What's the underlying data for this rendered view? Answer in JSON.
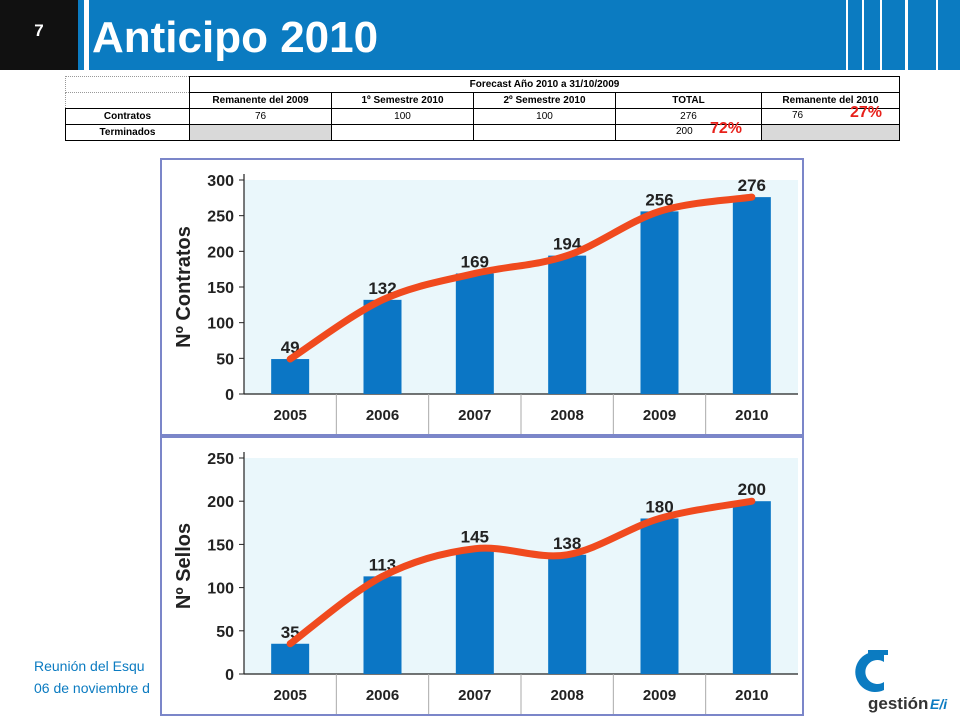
{
  "slide": {
    "number": "7",
    "title": "Anticipo 2010"
  },
  "table": {
    "main_header": "Forecast Año 2010 a 31/10/2009",
    "columns": [
      "Remanente del 2009",
      "1º Semestre 2010",
      "2º Semestre 2010",
      "TOTAL",
      "Remanente del 2010"
    ],
    "rows": [
      {
        "label": "Contratos",
        "cells": [
          "76",
          "100",
          "100",
          "276",
          "76"
        ],
        "badge": "27%"
      },
      {
        "label": "Terminados",
        "cells": [
          "",
          "",
          "",
          "200",
          ""
        ],
        "badge": "72%"
      }
    ]
  },
  "chart_data": [
    {
      "type": "bar",
      "categories": [
        "2005",
        "2006",
        "2007",
        "2008",
        "2009",
        "2010"
      ],
      "values": [
        49,
        132,
        169,
        194,
        256,
        276
      ],
      "ylabel": "Nº Contratos",
      "ylim": [
        0,
        300
      ],
      "yticks": [
        "0",
        "50",
        "100",
        "150",
        "200",
        "250",
        "300"
      ],
      "grid": false,
      "bar_color": "#0b76c5",
      "trend_color": "#f04a1e"
    },
    {
      "type": "bar",
      "categories": [
        "2005",
        "2006",
        "2007",
        "2008",
        "2009",
        "2010"
      ],
      "values": [
        35,
        113,
        145,
        138,
        180,
        200
      ],
      "ylabel": "Nº Sellos",
      "ylim": [
        0,
        250
      ],
      "yticks": [
        "0",
        "50",
        "100",
        "150",
        "200",
        "250"
      ],
      "grid": false,
      "bar_color": "#0b76c5",
      "trend_color": "#f04a1e"
    }
  ],
  "footer": {
    "line1": "Reunión del Esqu",
    "line2": "06 de noviembre d"
  },
  "logo": {
    "text": "gestión",
    "suffix": "E/i"
  },
  "colors": {
    "brand_blue": "#0b7bc1",
    "accent_red": "#e8211b",
    "frame": "#7b86c9"
  }
}
